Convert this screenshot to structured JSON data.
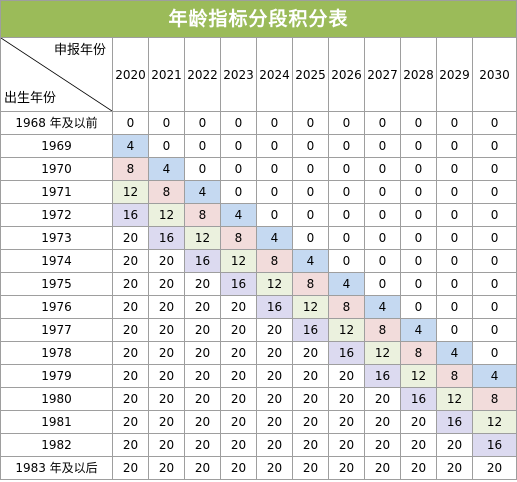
{
  "title": "年龄指标分段积分表",
  "corner": {
    "top": "申报年份",
    "bottom": "出生年份"
  },
  "years": [
    "2020",
    "2021",
    "2022",
    "2023",
    "2024",
    "2025",
    "2026",
    "2027",
    "2028",
    "2029",
    "2030"
  ],
  "rows": [
    {
      "label": "1968 年及以前",
      "values": [
        "0",
        "0",
        "0",
        "0",
        "0",
        "0",
        "0",
        "0",
        "0",
        "0",
        "0"
      ]
    },
    {
      "label": "1969",
      "values": [
        "4",
        "0",
        "0",
        "0",
        "0",
        "0",
        "0",
        "0",
        "0",
        "0",
        "0"
      ]
    },
    {
      "label": "1970",
      "values": [
        "8",
        "4",
        "0",
        "0",
        "0",
        "0",
        "0",
        "0",
        "0",
        "0",
        "0"
      ]
    },
    {
      "label": "1971",
      "values": [
        "12",
        "8",
        "4",
        "0",
        "0",
        "0",
        "0",
        "0",
        "0",
        "0",
        "0"
      ]
    },
    {
      "label": "1972",
      "values": [
        "16",
        "12",
        "8",
        "4",
        "0",
        "0",
        "0",
        "0",
        "0",
        "0",
        "0"
      ]
    },
    {
      "label": "1973",
      "values": [
        "20",
        "16",
        "12",
        "8",
        "4",
        "0",
        "0",
        "0",
        "0",
        "0",
        "0"
      ]
    },
    {
      "label": "1974",
      "values": [
        "20",
        "20",
        "16",
        "12",
        "8",
        "4",
        "0",
        "0",
        "0",
        "0",
        "0"
      ]
    },
    {
      "label": "1975",
      "values": [
        "20",
        "20",
        "20",
        "16",
        "12",
        "8",
        "4",
        "0",
        "0",
        "0",
        "0"
      ]
    },
    {
      "label": "1976",
      "values": [
        "20",
        "20",
        "20",
        "20",
        "16",
        "12",
        "8",
        "4",
        "0",
        "0",
        "0"
      ]
    },
    {
      "label": "1977",
      "values": [
        "20",
        "20",
        "20",
        "20",
        "20",
        "16",
        "12",
        "8",
        "4",
        "0",
        "0"
      ]
    },
    {
      "label": "1978",
      "values": [
        "20",
        "20",
        "20",
        "20",
        "20",
        "20",
        "16",
        "12",
        "8",
        "4",
        "0"
      ]
    },
    {
      "label": "1979",
      "values": [
        "20",
        "20",
        "20",
        "20",
        "20",
        "20",
        "20",
        "16",
        "12",
        "8",
        "4"
      ]
    },
    {
      "label": "1980",
      "values": [
        "20",
        "20",
        "20",
        "20",
        "20",
        "20",
        "20",
        "20",
        "16",
        "12",
        "8"
      ]
    },
    {
      "label": "1981",
      "values": [
        "20",
        "20",
        "20",
        "20",
        "20",
        "20",
        "20",
        "20",
        "20",
        "16",
        "12"
      ]
    },
    {
      "label": "1982",
      "values": [
        "20",
        "20",
        "20",
        "20",
        "20",
        "20",
        "20",
        "20",
        "20",
        "20",
        "16"
      ]
    },
    {
      "label": "1983 年及以后",
      "values": [
        "20",
        "20",
        "20",
        "20",
        "20",
        "20",
        "20",
        "20",
        "20",
        "20",
        "20"
      ]
    }
  ],
  "colors": {
    "title_bg": "#9bbb59",
    "value_4": "#c5d9f1",
    "value_8": "#f2dcdb",
    "value_12": "#ebf1de",
    "value_16": "#dcdaf0"
  }
}
